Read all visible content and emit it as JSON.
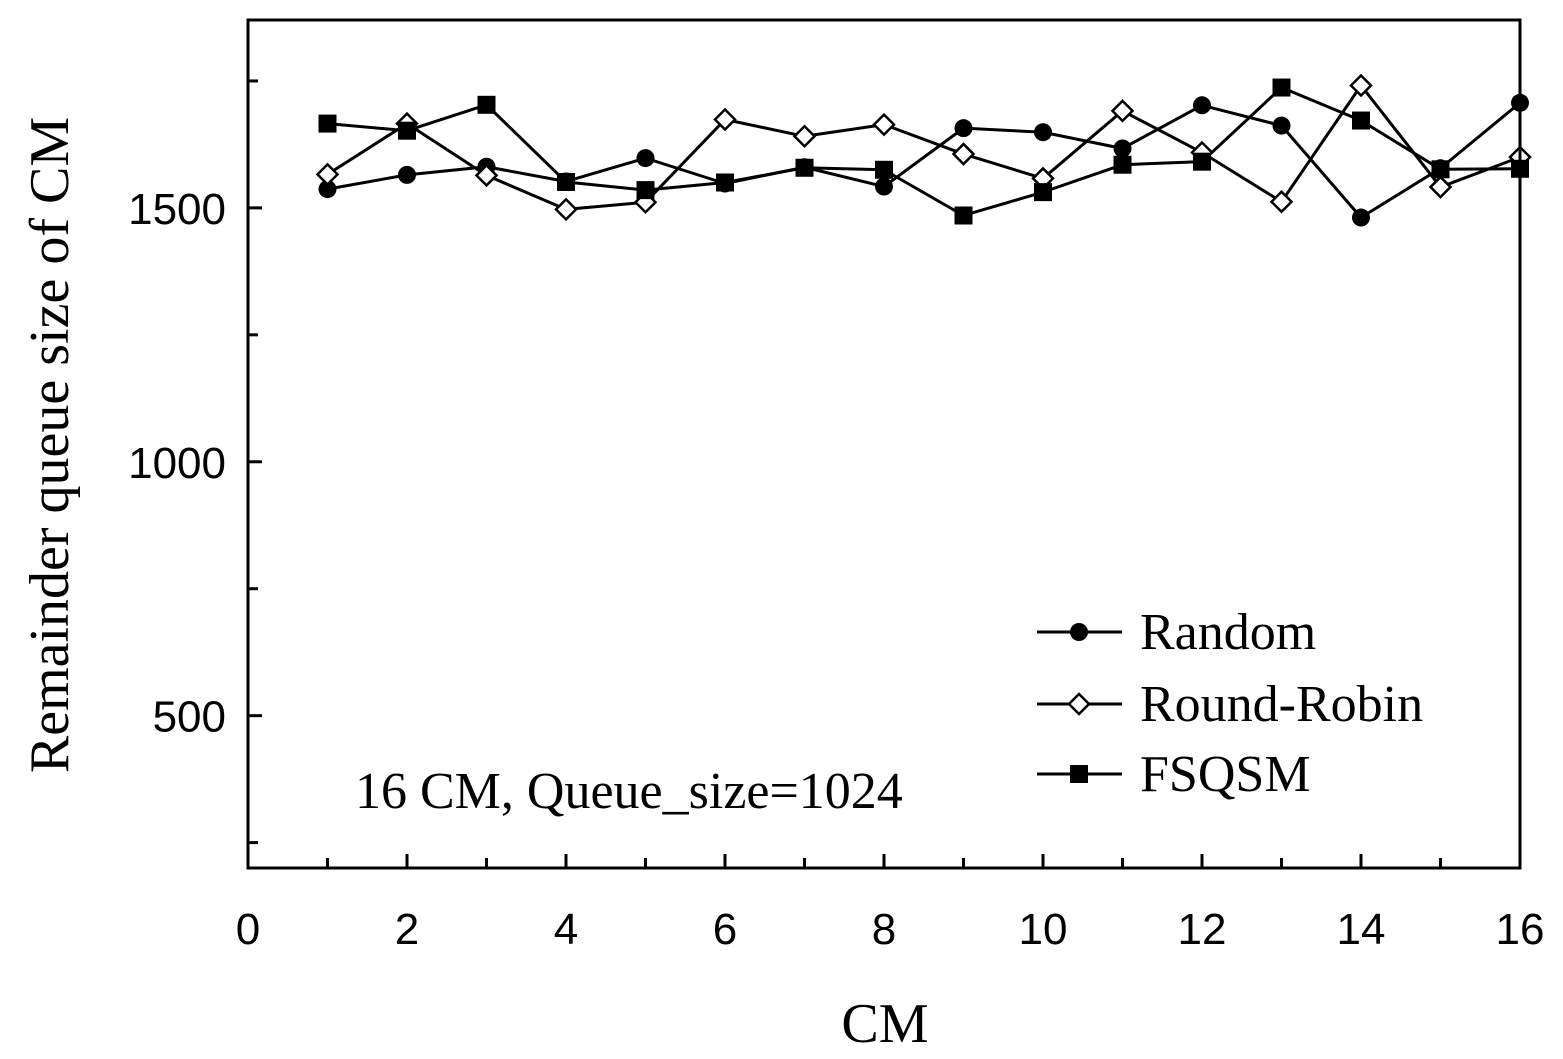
{
  "chart_data": {
    "type": "line",
    "title": "",
    "xlabel": "CM",
    "ylabel": "Remainder queue size of CM",
    "xlim": [
      0,
      16
    ],
    "ylim": [
      200,
      1870
    ],
    "x_ticks": [
      0,
      2,
      4,
      6,
      8,
      10,
      12,
      14,
      16
    ],
    "x_tick_labels": [
      "0",
      "2",
      "4",
      "6",
      "8",
      "10",
      "12",
      "14",
      "16"
    ],
    "y_ticks": [
      500,
      1000,
      1500
    ],
    "y_tick_labels": [
      "500",
      "1000",
      "1500"
    ],
    "y_minor_ticks": [
      250,
      750,
      1250,
      1750
    ],
    "annotation": "16 CM, Queue_size=1024",
    "legend_position": "bottom-right",
    "x": [
      1,
      2,
      3,
      4,
      5,
      6,
      7,
      8,
      9,
      10,
      11,
      12,
      13,
      14,
      15,
      16
    ],
    "series": [
      {
        "name": "Random",
        "marker": "filled-circle",
        "values": [
          1537,
          1565,
          1581,
          1552,
          1598,
          1548,
          1580,
          1542,
          1657,
          1649,
          1617,
          1702,
          1662,
          1481,
          1578,
          1707
        ]
      },
      {
        "name": "Round-Robin",
        "marker": "open-diamond",
        "values": [
          1566,
          1666,
          1564,
          1497,
          1511,
          1674,
          1641,
          1664,
          1606,
          1558,
          1691,
          1609,
          1512,
          1741,
          1541,
          1600
        ]
      },
      {
        "name": "FSQSM",
        "marker": "filled-square",
        "values": [
          1666,
          1652,
          1703,
          1551,
          1535,
          1550,
          1579,
          1575,
          1485,
          1531,
          1585,
          1591,
          1737,
          1672,
          1576,
          1577
        ]
      }
    ]
  }
}
